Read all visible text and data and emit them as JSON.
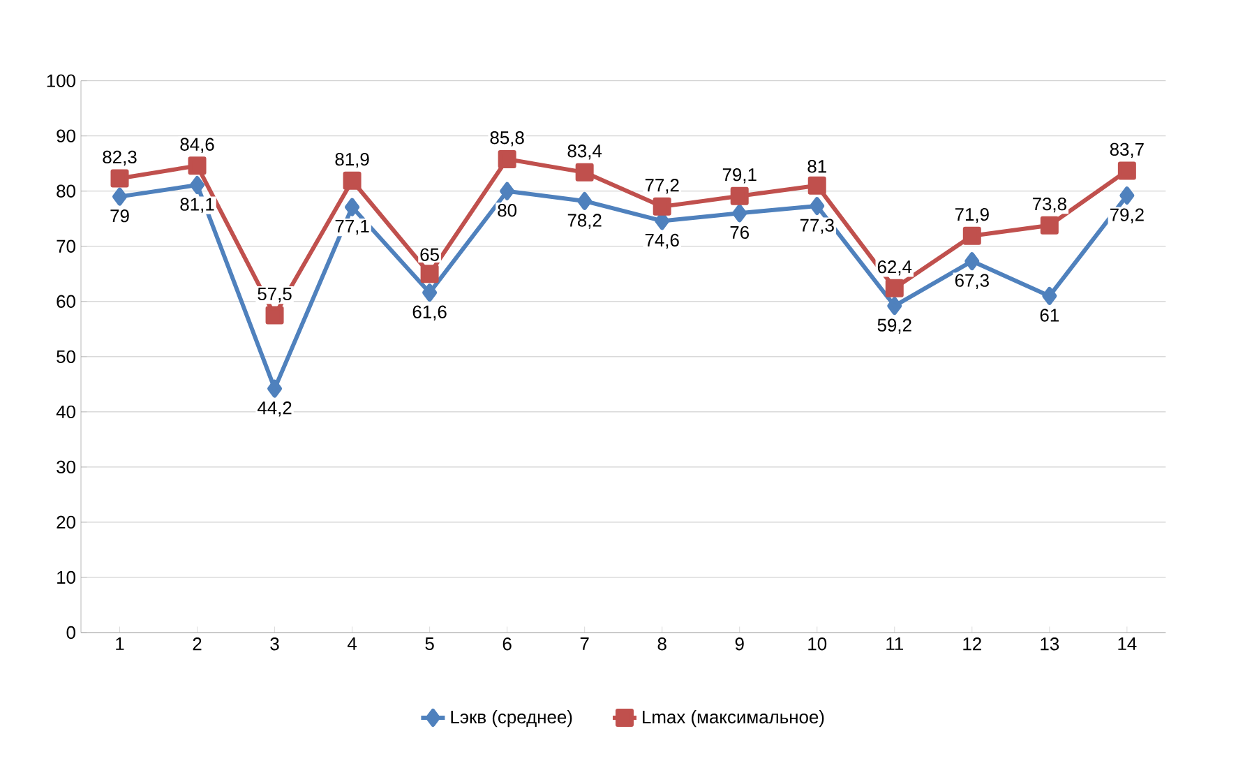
{
  "chart_data": {
    "type": "line",
    "categories": [
      "1",
      "2",
      "3",
      "4",
      "5",
      "6",
      "7",
      "8",
      "9",
      "10",
      "11",
      "12",
      "13",
      "14"
    ],
    "series": [
      {
        "name": "Lэкв (среднее)",
        "color": "#4f81bd",
        "marker": "diamond",
        "values": [
          79,
          81.1,
          44.2,
          77.1,
          61.6,
          80,
          78.2,
          74.6,
          76,
          77.3,
          59.2,
          67.3,
          61,
          79.2
        ],
        "value_labels": [
          "79",
          "81,1",
          "44,2",
          "77,1",
          "61,6",
          "80",
          "78,2",
          "74,6",
          "76",
          "77,3",
          "59,2",
          "67,3",
          "61",
          "79,2"
        ]
      },
      {
        "name": "Lmax (максимальное)",
        "color": "#c0504d",
        "marker": "square",
        "values": [
          82.3,
          84.6,
          57.5,
          81.9,
          65,
          85.8,
          83.4,
          77.2,
          79.1,
          81,
          62.4,
          71.9,
          73.8,
          83.7
        ],
        "value_labels": [
          "82,3",
          "84,6",
          "57,5",
          "81,9",
          "65",
          "85,8",
          "83,4",
          "77,2",
          "79,1",
          "81",
          "62,4",
          "71,9",
          "73,8",
          "83,7"
        ]
      }
    ],
    "ylim": [
      0,
      100
    ],
    "yticks": [
      0,
      10,
      20,
      30,
      40,
      50,
      60,
      70,
      80,
      90,
      100
    ],
    "grid": "y",
    "legend": "bottom",
    "line_style": "solid"
  }
}
